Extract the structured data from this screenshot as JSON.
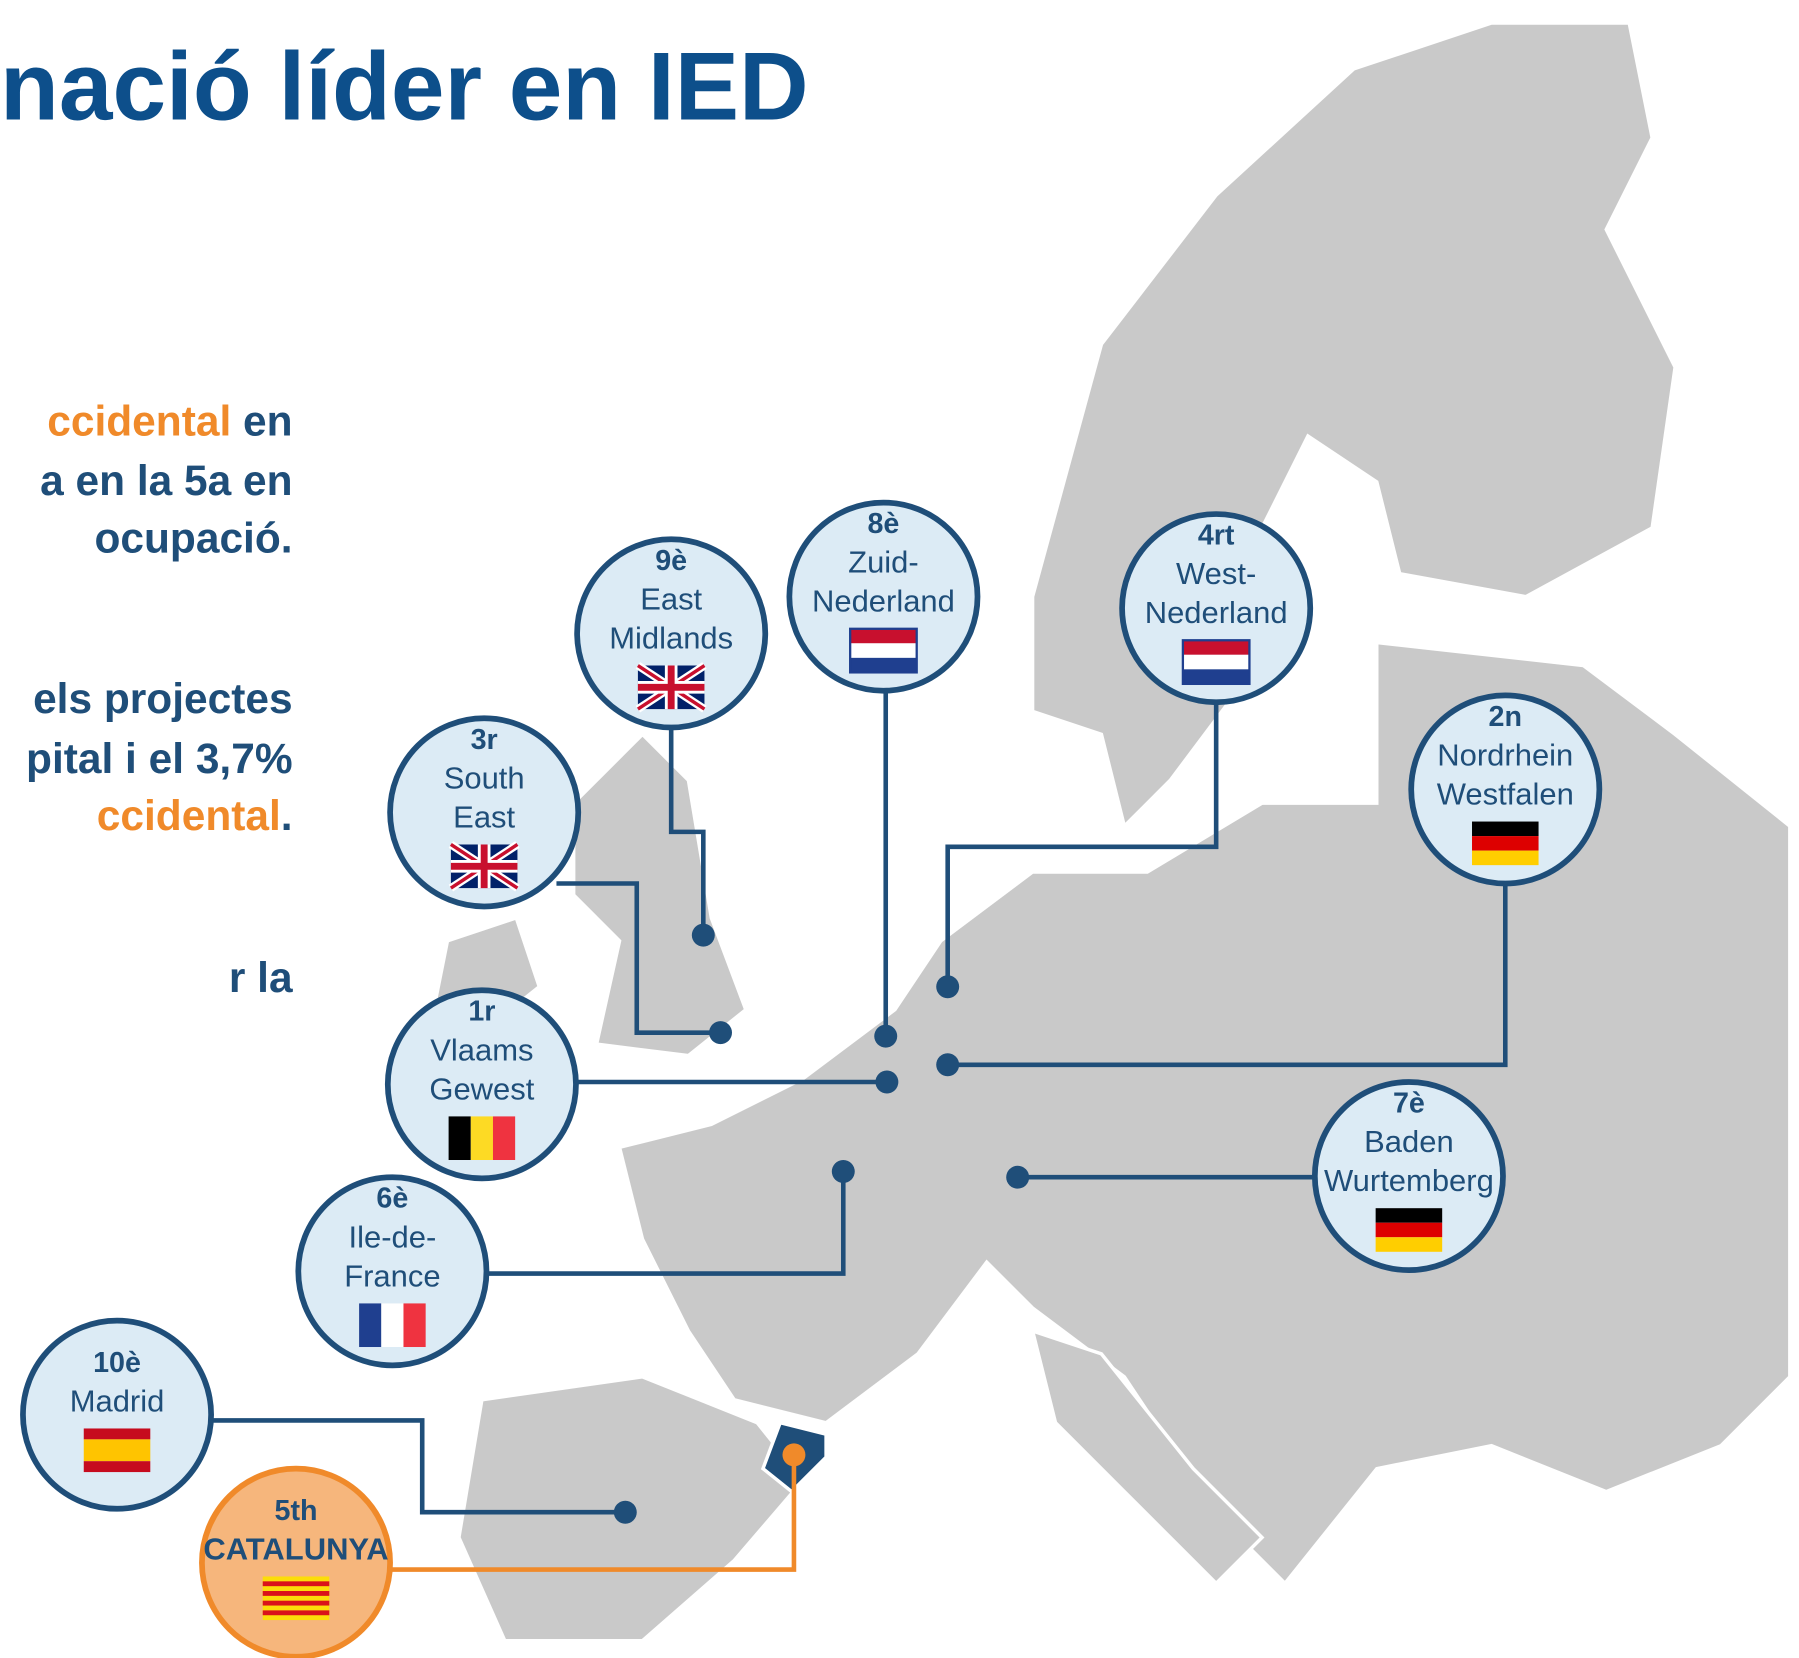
{
  "header": {
    "title": "nació  líder  en  IED"
  },
  "paragraphs": [
    [
      {
        "text": "ccidental",
        "highlight": true
      },
      {
        "text": "  en",
        "highlight": false
      }
    ],
    [
      {
        "text": "a en la 5a en",
        "highlight": false
      }
    ],
    [
      {
        "text": "ocupació.",
        "highlight": false
      }
    ],
    [
      {
        "text": "els projectes",
        "highlight": false
      }
    ],
    [
      {
        "text": "pital i el 3,7%",
        "highlight": false
      }
    ],
    [
      {
        "text": "ccidental",
        "highlight": true
      },
      {
        "text": ".",
        "highlight": false
      }
    ],
    [
      {
        "text": "r la",
        "highlight": false
      }
    ]
  ],
  "regions": [
    {
      "rank": "9è",
      "name": [
        "East",
        "Midlands"
      ]
    },
    {
      "rank": "8è",
      "name": [
        "Zuid-",
        "Nederland"
      ]
    },
    {
      "rank": "4rt",
      "name": [
        "West-",
        "Nederland"
      ]
    },
    {
      "rank": "2n",
      "name": [
        "Nordrhein",
        "Westfalen"
      ]
    },
    {
      "rank": "3r",
      "name": [
        "South",
        "East"
      ]
    },
    {
      "rank": "1r",
      "name": [
        "Vlaams",
        "Gewest"
      ]
    },
    {
      "rank": "7è",
      "name": [
        "Baden",
        "Wurtemberg"
      ]
    },
    {
      "rank": "6è",
      "name": [
        "Ile-de-",
        "France"
      ]
    },
    {
      "rank": "10è",
      "name": [
        "Madrid"
      ]
    },
    {
      "rank": "5th",
      "name": [
        "CATALUNYA"
      ]
    }
  ]
}
